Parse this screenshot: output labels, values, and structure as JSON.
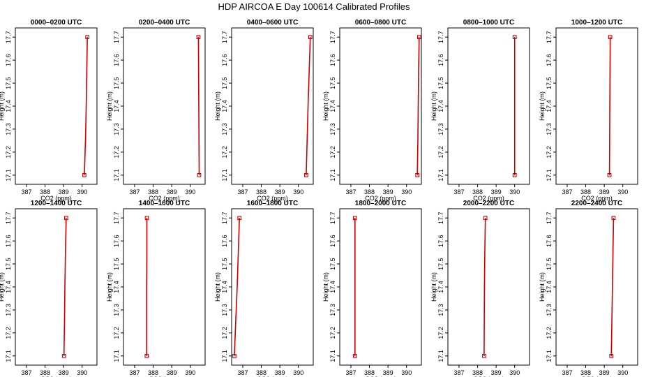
{
  "title": "HDP AIRCOA E  Day 100614  Calibrated Profiles",
  "chart_data": {
    "type": "line",
    "xlabel": "CO2 (ppm)",
    "ylabel": "Height (m)",
    "xlim": [
      386.4,
      390.8
    ],
    "ylim": [
      17.06,
      17.74
    ],
    "x_ticks": [
      "387",
      "388",
      "389",
      "390"
    ],
    "y_ticks": [
      "17.1",
      "17.2",
      "17.3",
      "17.4",
      "17.5",
      "17.6",
      "17.7"
    ],
    "line_color": "#cc0000",
    "panels": [
      {
        "title": "0000–0200 UTC",
        "x": [
          390.12,
          390.18,
          390.22,
          390.25,
          390.28
        ],
        "y": [
          17.1,
          17.25,
          17.4,
          17.55,
          17.7
        ]
      },
      {
        "title": "0200–0400 UTC",
        "x": [
          390.48,
          390.47,
          390.46,
          390.45,
          390.44
        ],
        "y": [
          17.1,
          17.25,
          17.4,
          17.55,
          17.7
        ]
      },
      {
        "title": "0400–0600 UTC",
        "x": [
          390.42,
          390.47,
          390.52,
          390.58,
          390.64
        ],
        "y": [
          17.1,
          17.25,
          17.4,
          17.55,
          17.7
        ]
      },
      {
        "title": "0600–0800 UTC",
        "x": [
          390.58,
          390.61,
          390.63,
          390.65,
          390.68
        ],
        "y": [
          17.1,
          17.25,
          17.4,
          17.55,
          17.7
        ]
      },
      {
        "title": "0800–1000 UTC",
        "x": [
          390.0,
          390.0,
          390.0,
          390.0,
          390.0
        ],
        "y": [
          17.1,
          17.25,
          17.4,
          17.55,
          17.7
        ]
      },
      {
        "title": "1000–1200 UTC",
        "x": [
          389.28,
          389.29,
          389.3,
          389.31,
          389.32
        ],
        "y": [
          17.1,
          17.25,
          17.4,
          17.55,
          17.7
        ]
      },
      {
        "title": "1200–1400 UTC",
        "x": [
          389.02,
          389.05,
          389.07,
          389.1,
          389.14
        ],
        "y": [
          17.1,
          17.25,
          17.4,
          17.55,
          17.7
        ]
      },
      {
        "title": "1400–1600 UTC",
        "x": [
          387.65,
          387.65,
          387.65,
          387.66,
          387.66
        ],
        "y": [
          17.1,
          17.25,
          17.4,
          17.55,
          17.7
        ]
      },
      {
        "title": "1600–1800 UTC",
        "x": [
          386.55,
          386.62,
          386.7,
          386.76,
          386.82
        ],
        "y": [
          17.1,
          17.25,
          17.4,
          17.55,
          17.7
        ]
      },
      {
        "title": "1800–2000 UTC",
        "x": [
          387.22,
          387.22,
          387.22,
          387.22,
          387.22
        ],
        "y": [
          17.1,
          17.25,
          17.4,
          17.55,
          17.7
        ]
      },
      {
        "title": "2000–2200 UTC",
        "x": [
          388.35,
          388.36,
          388.37,
          388.39,
          388.42
        ],
        "y": [
          17.1,
          17.25,
          17.4,
          17.55,
          17.7
        ]
      },
      {
        "title": "2200–2400 UTC",
        "x": [
          389.38,
          389.41,
          389.44,
          389.47,
          389.5
        ],
        "y": [
          17.1,
          17.25,
          17.4,
          17.55,
          17.7
        ]
      }
    ]
  }
}
